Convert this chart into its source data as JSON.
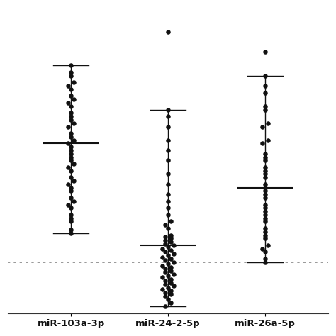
{
  "categories": [
    "miR-103a-3p",
    "miR-24-2-5p",
    "miR-26a-5p"
  ],
  "x_positions": [
    0,
    1,
    2
  ],
  "background_color": "#ffffff",
  "dot_color": "#111111",
  "dot_size": 22,
  "whisker_color": "#111111",
  "whisker_lw": 1.0,
  "dotted_line_y": 1.0,
  "dotted_line_color": "#888888",
  "ylim": [
    -0.5,
    8.5
  ],
  "xlim": [
    -0.65,
    2.65
  ],
  "groups": {
    "miR-103a-3p": {
      "whisker_low": 1.85,
      "whisker_high": 6.8,
      "median": 4.5,
      "cap_hw": 0.18,
      "median_hw": 0.28,
      "points_y": [
        1.85,
        1.95,
        2.2,
        2.3,
        2.4,
        2.6,
        2.7,
        2.8,
        2.9,
        3.1,
        3.2,
        3.3,
        3.4,
        3.5,
        3.7,
        3.8,
        3.9,
        4.0,
        4.1,
        4.2,
        4.3,
        4.4,
        4.5,
        4.6,
        4.7,
        4.8,
        5.0,
        5.1,
        5.2,
        5.3,
        5.4,
        5.6,
        5.7,
        5.8,
        5.9,
        6.1,
        6.2,
        6.3,
        6.5,
        6.6,
        6.8
      ]
    },
    "miR-24-2-5p": {
      "whisker_low": -0.3,
      "whisker_high": 5.5,
      "median": 1.5,
      "outlier_high": 7.8,
      "cap_hw": 0.18,
      "median_hw": 0.28,
      "points_y": [
        -0.3,
        -0.2,
        -0.1,
        0.0,
        0.05,
        0.1,
        0.15,
        0.2,
        0.25,
        0.3,
        0.35,
        0.4,
        0.45,
        0.5,
        0.55,
        0.6,
        0.65,
        0.7,
        0.75,
        0.8,
        0.85,
        0.9,
        0.95,
        1.0,
        1.05,
        1.1,
        1.15,
        1.2,
        1.25,
        1.3,
        1.35,
        1.4,
        1.45,
        1.5,
        1.55,
        1.6,
        1.65,
        1.7,
        1.75,
        1.8,
        2.0,
        2.1,
        2.2,
        2.4,
        2.6,
        2.8,
        3.0,
        3.3,
        3.6,
        4.0,
        4.3,
        4.6,
        5.0,
        5.3,
        5.5
      ]
    },
    "miR-26a-5p": {
      "whisker_low": 1.0,
      "whisker_high": 6.5,
      "median": 3.2,
      "cap_hw": 0.18,
      "median_hw": 0.28,
      "points_y": [
        1.0,
        1.1,
        1.3,
        1.4,
        1.5,
        1.7,
        1.8,
        1.9,
        2.0,
        2.2,
        2.3,
        2.4,
        2.5,
        2.6,
        2.7,
        2.9,
        3.0,
        3.1,
        3.2,
        3.3,
        3.5,
        3.6,
        3.7,
        3.8,
        4.0,
        4.1,
        4.2,
        4.5,
        4.6,
        5.0,
        5.1,
        5.5,
        5.6,
        6.0,
        6.2,
        6.5,
        7.2
      ]
    }
  }
}
